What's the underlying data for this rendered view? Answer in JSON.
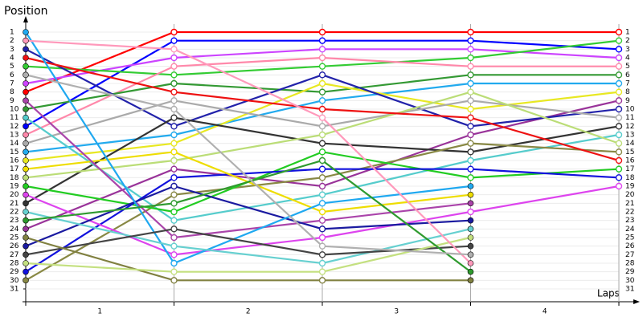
{
  "chart_data": {
    "type": "position-line",
    "ylabel": "Position",
    "xlabel": "Laps",
    "categories": [
      "1",
      "2",
      "3",
      "4"
    ],
    "x": [
      0,
      1,
      2,
      3,
      4
    ],
    "xlim": [
      0,
      4
    ],
    "ylim": [
      31,
      1
    ],
    "yticks": [
      1,
      2,
      3,
      4,
      5,
      6,
      7,
      8,
      9,
      10,
      11,
      12,
      13,
      14,
      15,
      16,
      17,
      18,
      19,
      20,
      21,
      22,
      23,
      24,
      25,
      26,
      27,
      28,
      29,
      30,
      31
    ],
    "grid": true,
    "series": [
      {
        "color": "#ff0000",
        "values": [
          8,
          1,
          1,
          1,
          1
        ]
      },
      {
        "color": "#0000ff",
        "values": [
          12,
          2,
          2,
          2,
          3
        ]
      },
      {
        "color": "#cc44ff",
        "values": [
          7,
          4,
          3,
          3,
          4
        ]
      },
      {
        "color": "#33cc33",
        "values": [
          5,
          6,
          5,
          4,
          2
        ]
      },
      {
        "color": "#ff88aa",
        "values": [
          13,
          5,
          4,
          5,
          5
        ]
      },
      {
        "color": "#339933",
        "values": [
          10,
          7,
          8,
          6,
          6
        ]
      },
      {
        "color": "#22aaee",
        "values": [
          15,
          13,
          9,
          7,
          7
        ]
      },
      {
        "color": "#e8e822",
        "values": [
          16,
          14,
          7,
          10,
          8
        ]
      },
      {
        "color": "#993399",
        "values": [
          24,
          17,
          19,
          13,
          9
        ]
      },
      {
        "color": "#2222aa",
        "values": [
          3,
          12,
          6,
          12,
          10
        ]
      },
      {
        "color": "#aaaaaa",
        "values": [
          14,
          9,
          12,
          9,
          11
        ]
      },
      {
        "color": "#333333",
        "values": [
          21,
          11,
          14,
          15,
          12
        ]
      },
      {
        "color": "#55cccc",
        "values": [
          11,
          23,
          20,
          16,
          13
        ]
      },
      {
        "color": "#bbdd77",
        "values": [
          18,
          16,
          13,
          8,
          14
        ]
      },
      {
        "color": "#888844",
        "values": [
          30,
          20,
          18,
          14,
          15
        ]
      },
      {
        "color": "#ee1111",
        "values": [
          4,
          8,
          10,
          11,
          16
        ]
      },
      {
        "color": "#22cc22",
        "values": [
          19,
          22,
          15,
          18,
          17
        ]
      },
      {
        "color": "#1111dd",
        "values": [
          29,
          18,
          17,
          17,
          18
        ]
      },
      {
        "color": "#dd44ee",
        "values": [
          20,
          27,
          25,
          22,
          19
        ]
      },
      {
        "color": "#eedd00",
        "values": [
          17,
          15,
          22,
          20,
          null
        ]
      },
      {
        "color": "#aa44aa",
        "values": [
          9,
          25,
          23,
          21,
          null
        ]
      },
      {
        "color": "#1a1aa0",
        "values": [
          26,
          19,
          24,
          23,
          null
        ]
      },
      {
        "color": "#1fa8f0",
        "values": [
          1,
          28,
          21,
          19,
          null
        ]
      },
      {
        "color": "#66d0d0",
        "values": [
          22,
          26,
          28,
          24,
          null
        ]
      },
      {
        "color": "#444444",
        "values": [
          27,
          24,
          27,
          26,
          null
        ]
      },
      {
        "color": "#808040",
        "values": [
          25,
          30,
          30,
          30,
          null
        ]
      },
      {
        "color": "#c4e080",
        "values": [
          28,
          29,
          29,
          25,
          null
        ]
      },
      {
        "color": "#2e9a2e",
        "values": [
          23,
          21,
          16,
          29,
          null
        ]
      },
      {
        "color": "#ff99bb",
        "values": [
          2,
          3,
          11,
          28,
          null
        ]
      },
      {
        "color": "#b0b0b0",
        "values": [
          6,
          10,
          26,
          27,
          null
        ]
      }
    ]
  }
}
